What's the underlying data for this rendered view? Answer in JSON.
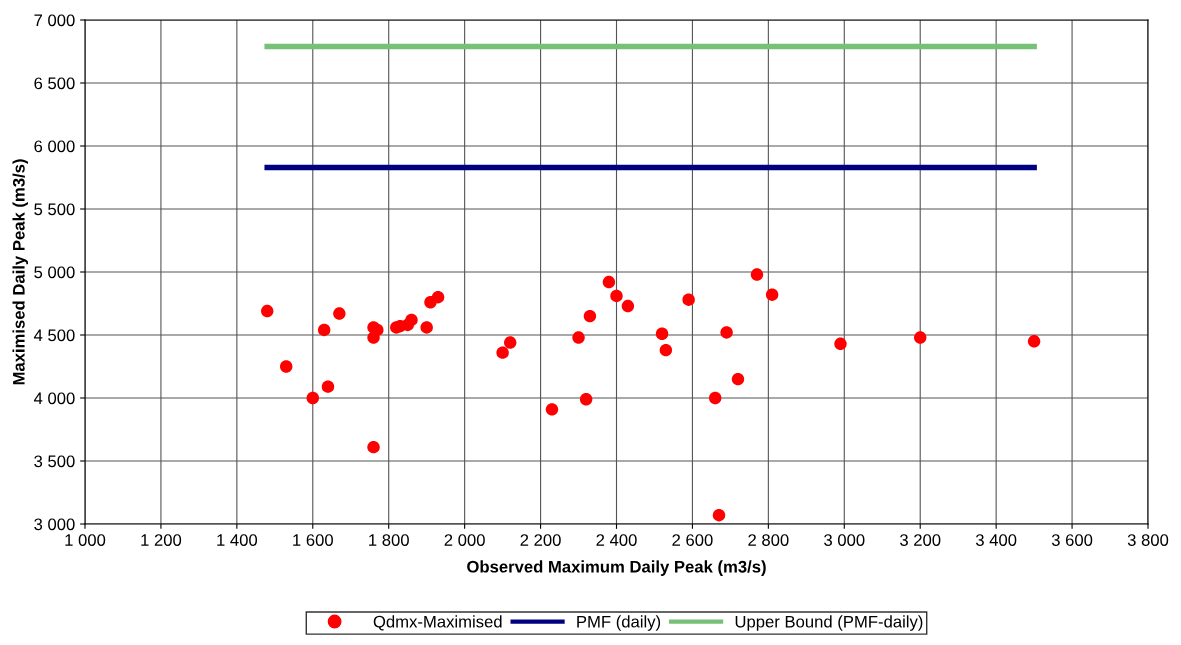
{
  "chart_data": {
    "type": "scatter",
    "xlabel": "Observed Maximum Daily Peak (m3/s)",
    "ylabel": "Maximised Daily Peak (m3/s)",
    "xlim": [
      1000,
      3800
    ],
    "xticks": [
      {
        "value": 1000,
        "label": "1 000"
      },
      {
        "value": 1200,
        "label": "1 200"
      },
      {
        "value": 1400,
        "label": "1 400"
      },
      {
        "value": 1600,
        "label": "1 600"
      },
      {
        "value": 1800,
        "label": "1 800"
      },
      {
        "value": 2000,
        "label": "2 000"
      },
      {
        "value": 2200,
        "label": "2 200"
      },
      {
        "value": 2400,
        "label": "2 400"
      },
      {
        "value": 2600,
        "label": "2 600"
      },
      {
        "value": 2800,
        "label": "2 800"
      },
      {
        "value": 3000,
        "label": "3 000"
      },
      {
        "value": 3200,
        "label": "3 200"
      },
      {
        "value": 3400,
        "label": "3 400"
      },
      {
        "value": 3600,
        "label": "3 600"
      },
      {
        "value": 3800,
        "label": "3 800"
      }
    ],
    "ylim": [
      3000,
      7000
    ],
    "yticks": [
      {
        "value": 3000,
        "label": "3 000"
      },
      {
        "value": 3500,
        "label": "3 500"
      },
      {
        "value": 4000,
        "label": "4 000"
      },
      {
        "value": 4500,
        "label": "4 500"
      },
      {
        "value": 5000,
        "label": "5 000"
      },
      {
        "value": 5500,
        "label": "5 500"
      },
      {
        "value": 6000,
        "label": "6 000"
      },
      {
        "value": 6500,
        "label": "6 500"
      },
      {
        "value": 7000,
        "label": "7 000"
      }
    ],
    "grid": true,
    "legend": "bottom",
    "series": [
      {
        "name": "Qdmx-Maximised",
        "color": "#ff0000",
        "marker": "circle",
        "x": [
          1480,
          1530,
          1600,
          1630,
          1640,
          1670,
          1760,
          1760,
          1770,
          1760,
          1820,
          1830,
          1850,
          1860,
          1900,
          1910,
          1930,
          2100,
          2120,
          2230,
          2300,
          2320,
          2330,
          2380,
          2400,
          2430,
          2520,
          2530,
          2590,
          2660,
          2670,
          2690,
          2720,
          2770,
          2810,
          2990,
          3200,
          3500
        ],
        "values": [
          4690,
          4250,
          4000,
          4540,
          4090,
          4670,
          4560,
          4480,
          4540,
          3610,
          4560,
          4570,
          4580,
          4620,
          4560,
          4760,
          4800,
          4360,
          4440,
          3910,
          4480,
          3990,
          4650,
          4920,
          4810,
          4730,
          4510,
          4380,
          4780,
          4000,
          3070,
          4520,
          4150,
          4980,
          4820,
          4430,
          4480,
          4450
        ]
      },
      {
        "name": "PMF (daily)",
        "type": "line",
        "color": "#000080",
        "marker": "none",
        "x": [
          1480,
          3500
        ],
        "values": [
          5830,
          5830
        ]
      },
      {
        "name": "Upper Bound (PMF-daily)",
        "type": "line",
        "color": "#77c077",
        "marker": "none",
        "x": [
          1480,
          3500
        ],
        "values": [
          6790,
          6790
        ]
      }
    ]
  }
}
